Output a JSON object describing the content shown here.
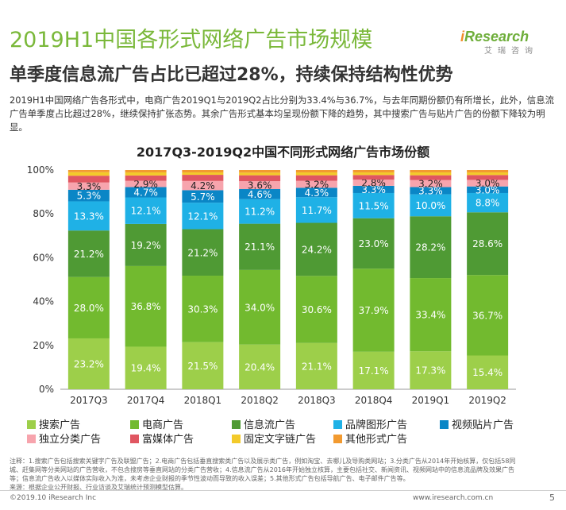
{
  "title": "2019H1中国各形式网络广告市场规模",
  "subtitle": "单季度信息流广告占比已超过28%，持续保持结构性优势",
  "description": "2019H1中国网络广告各形式中，电商广告2019Q1与2019Q2占比分别为33.4%与36.7%，与去年同期份额仍有所增长，此外，信息流广告单季度占比超过28%，继续保持扩张态势。其余广告形式基本均呈现份额下降的趋势，其中搜索广告与贴片广告的份额下降较为明显。",
  "logo": {
    "brand_i": "i",
    "brand_rest": "Research",
    "cn": "艾瑞咨询"
  },
  "chart_data": {
    "type": "bar",
    "stacked": true,
    "title": "2017Q3-2019Q2中国不同形式网络广告市场份额",
    "categories": [
      "2017Q3",
      "2017Q4",
      "2018Q1",
      "2018Q2",
      "2018Q3",
      "2018Q4",
      "2019Q1",
      "2019Q2"
    ],
    "yticks": [
      "0%",
      "20%",
      "40%",
      "60%",
      "80%",
      "100%"
    ],
    "ylim": [
      0,
      100
    ],
    "series": [
      {
        "name": "搜索广告",
        "color": "#9dcf4a",
        "values": [
          23.2,
          19.4,
          21.5,
          20.4,
          21.1,
          17.1,
          17.3,
          15.4
        ],
        "labels": [
          "23.2%",
          "19.4%",
          "21.5%",
          "20.4%",
          "21.1%",
          "17.1%",
          "17.3%",
          "15.4%"
        ]
      },
      {
        "name": "电商广告",
        "color": "#72ba2f",
        "values": [
          28.0,
          36.8,
          30.3,
          34.0,
          30.6,
          37.9,
          33.4,
          36.7
        ],
        "labels": [
          "28.0%",
          "36.8%",
          "30.3%",
          "34.0%",
          "30.6%",
          "37.9%",
          "33.4%",
          "36.7%"
        ]
      },
      {
        "name": "信息流广告",
        "color": "#4f9a34",
        "values": [
          21.2,
          19.2,
          21.2,
          21.1,
          24.2,
          23.0,
          28.2,
          28.6
        ],
        "labels": [
          "21.2%",
          "19.2%",
          "21.2%",
          "21.1%",
          "24.2%",
          "23.0%",
          "28.2%",
          "28.6%"
        ]
      },
      {
        "name": "品牌图形广告",
        "color": "#1fb1e6",
        "values": [
          13.3,
          12.1,
          12.1,
          11.2,
          11.7,
          11.5,
          10.0,
          8.8
        ],
        "labels": [
          "13.3%",
          "12.1%",
          "12.1%",
          "11.2%",
          "11.7%",
          "11.5%",
          "10.0%",
          "8.8%"
        ]
      },
      {
        "name": "视频贴片广告",
        "color": "#0a86c6",
        "values": [
          5.3,
          4.7,
          5.7,
          4.6,
          4.3,
          3.3,
          3.3,
          3.0
        ],
        "labels": [
          "5.3%",
          "4.7%",
          "5.7%",
          "4.6%",
          "4.3%",
          "3.3%",
          "3.3%",
          "3.0%"
        ]
      },
      {
        "name": "独立分类广告",
        "color": "#f7a4ad",
        "values": [
          3.3,
          2.9,
          4.2,
          3.6,
          3.2,
          2.8,
          3.2,
          3.0
        ],
        "labels": [
          "3.3%",
          "2.9%",
          "4.2%",
          "3.6%",
          "3.2%",
          "2.8%",
          "3.2%",
          "3.0%"
        ]
      },
      {
        "name": "富媒体广告",
        "color": "#e05661",
        "values": [
          3.1,
          2.4,
          2.8,
          2.7,
          2.5,
          2.1,
          2.2,
          2.2
        ],
        "labels": []
      },
      {
        "name": "固定文字链广告",
        "color": "#f3ca2a",
        "values": [
          1.6,
          1.4,
          1.1,
          1.2,
          1.3,
          1.2,
          1.3,
          1.2
        ],
        "labels": []
      },
      {
        "name": "其他形式广告",
        "color": "#f29a30",
        "values": [
          1.0,
          1.1,
          1.1,
          1.2,
          1.1,
          1.1,
          1.1,
          1.1
        ],
        "labels": []
      }
    ]
  },
  "note": "注释：1.搜索广告包括搜索关键字广告及联盟广告；2.电商广告包括垂直搜索类广告以及展示类广告，例如淘宝、去哪儿及导购类网站；3.分类广告从2014年开始核算，仅包括58同城、赶集网等分类网站的广告营收，不包含搜房等垂直网站的分类广告营收；4.信息流广告从2016年开始独立核算，主要包括社交、新闻资讯、视频网站中的信息流品牌及效果广告等；信息流广告收入以媒体实际收入为准，未考虑企业财报的季节性波动而导致的收入误差；5.其他形式广告包括导航广告、电子邮件广告等。",
  "source": "来源：根据企业公开财报、行业访谈及艾瑞统计预测模型估算。",
  "footer_left": "©2019.10 iResearch Inc",
  "footer_right": "www.iresearch.com.cn",
  "page": "5"
}
